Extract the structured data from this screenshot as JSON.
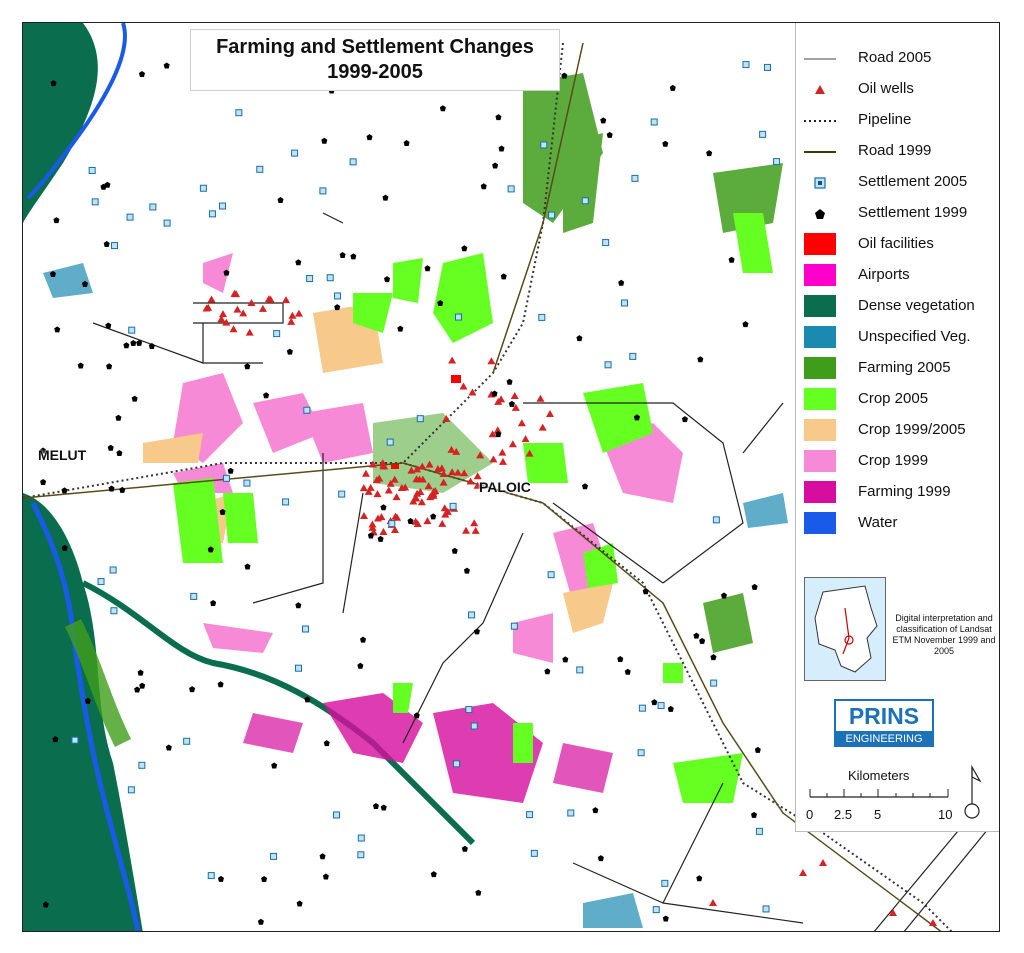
{
  "title": {
    "line1": "Farming and Settlement Changes",
    "line2": "1999-2005"
  },
  "places": {
    "melut": "MELUT",
    "paloic": "PALOIC"
  },
  "legend": [
    {
      "label": "Road 2005",
      "symbol": "line-road2005"
    },
    {
      "label": "Oil wells",
      "symbol": "triangle-red"
    },
    {
      "label": "Pipeline",
      "symbol": "dotted-line"
    },
    {
      "label": "Road 1999",
      "symbol": "line-road1999"
    },
    {
      "label": "Settlement 2005",
      "symbol": "square-blue"
    },
    {
      "label": "Settlement 1999",
      "symbol": "pentagon-black"
    },
    {
      "label": "Oil facilities",
      "color": "#ff0000"
    },
    {
      "label": "Airports",
      "color": "#ff00cc"
    },
    {
      "label": "Dense vegetation",
      "color": "#0a6e4e"
    },
    {
      "label": "Unspecified Veg.",
      "color": "#1b8ab0"
    },
    {
      "label": "Farming 2005",
      "color": "#3e9e1a"
    },
    {
      "label": "Crop 2005",
      "color": "#66ff22"
    },
    {
      "label": "Crop 1999/2005",
      "color": "#f7c98a"
    },
    {
      "label": "Crop 1999",
      "color": "#f78ad6"
    },
    {
      "label": "Farming 1999",
      "color": "#d60d9e"
    },
    {
      "label": "Water",
      "color": "#1a5ae8"
    }
  ],
  "inset_text": "Digital interpretation and classification of Landsat ETM November 1999 and 2005",
  "logo": {
    "name": "PRINS",
    "sub": "ENGINEERING"
  },
  "scale": {
    "label": "Kilometers",
    "ticks": [
      "0",
      "2.5",
      "5",
      "10"
    ]
  }
}
